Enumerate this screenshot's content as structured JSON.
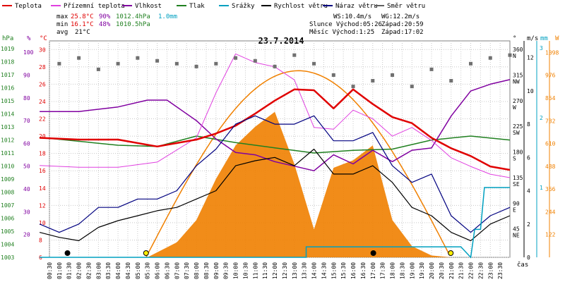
{
  "legend": [
    {
      "id": "teplota",
      "label": "Teplota",
      "color": "#e00000"
    },
    {
      "id": "prizemni",
      "label": "Přízemní teplota",
      "color": "#e040e0"
    },
    {
      "id": "vlhkost",
      "label": "Vlhkost",
      "color": "#8000a0"
    },
    {
      "id": "tlak",
      "label": "Tlak",
      "color": "#208020"
    },
    {
      "id": "srazky",
      "label": "Srážky",
      "color": "#00a0c0"
    },
    {
      "id": "rychlost",
      "label": "Rychlost větru",
      "color": "#000000"
    },
    {
      "id": "naraz",
      "label": "Náraz větru",
      "color": "#000080"
    },
    {
      "id": "smer",
      "label": "Směr větru",
      "color": "#606060"
    }
  ],
  "stats": {
    "max_label": "max",
    "min_label": "min",
    "avg_label": "avg",
    "max_temp": "25.8°C",
    "max_hum": "90%",
    "max_press": "1012.4hPa",
    "max_rain": "1.0mm",
    "min_temp": "16.1°C",
    "min_hum": "48%",
    "min_press": "1010.5hPa",
    "avg_temp": "21°C"
  },
  "info": {
    "ws": "WS:10.4m/s",
    "wg": "WG:12.2m/s",
    "slunce": "Slunce Východ:05:26",
    "slunce_zapad": "Západ:20:59",
    "mesic": "Měsíc  Východ:1:25",
    "mesic_zapad": "Západ:17:02"
  },
  "colors": {
    "grid": "#c8c8c8",
    "sun": "#f08000",
    "axis_temp": "#e00000",
    "axis_press": "#208020",
    "axis_hum": "#8000a0",
    "axis_wind": "#000000",
    "axis_rain": "#00a0c0",
    "axis_solar": "#f08000"
  },
  "chart_data": {
    "type": "line",
    "title": "23.7.2014",
    "x_unit": "čas",
    "time_labels": [
      "00:30",
      "01:00",
      "01:30",
      "02:00",
      "02:30",
      "03:00",
      "03:30",
      "04:00",
      "04:30",
      "05:00",
      "05:30",
      "06:00",
      "06:30",
      "07:00",
      "07:30",
      "08:00",
      "08:30",
      "09:00",
      "09:30",
      "10:00",
      "10:30",
      "11:00",
      "11:30",
      "12:00",
      "12:30",
      "13:00",
      "13:30",
      "14:00",
      "14:30",
      "15:00",
      "15:30",
      "16:00",
      "16:30",
      "17:00",
      "17:30",
      "18:00",
      "18:30",
      "19:00",
      "19:30",
      "20:00",
      "20:30",
      "21:00",
      "21:30",
      "22:00",
      "22:30",
      "23:00",
      "23:30"
    ],
    "axes": {
      "pressure": {
        "unit": "hPa",
        "ticks": [
          "1019",
          "1018",
          "1017",
          "1016",
          "1015",
          "1014",
          "1013",
          "1012",
          "1011",
          "1010",
          "1009",
          "1008",
          "1007",
          "1006",
          "1005",
          "1004",
          "1003"
        ]
      },
      "humidity": {
        "unit": "%",
        "ticks": [
          "100",
          "90",
          "80",
          "70",
          "60",
          "50",
          "40",
          "30",
          "20"
        ]
      },
      "temperature": {
        "unit": "°C",
        "ticks": [
          "30",
          "28",
          "26",
          "24",
          "22",
          "20",
          "18",
          "16",
          "14",
          "12",
          "10",
          "8",
          "6"
        ]
      },
      "direction": {
        "unit": "°",
        "ticks": [
          "360",
          "315",
          "270",
          "225",
          "180",
          "135",
          "90",
          "45"
        ],
        "compass": [
          "N",
          "NW",
          "W",
          "SW",
          "S",
          "SE",
          "E",
          "NE"
        ]
      },
      "wind": {
        "unit": "m/s",
        "ticks": [
          "12",
          "10",
          "8",
          "6",
          "4",
          "2",
          "0"
        ]
      },
      "rain": {
        "unit": "mm",
        "ticks": [
          "3",
          "2",
          "1"
        ]
      },
      "solar": {
        "unit": "W",
        "ticks": [
          "1098",
          "976",
          "854",
          "732",
          "610",
          "488",
          "366",
          "244",
          "122"
        ]
      }
    },
    "series": [
      {
        "name": "Teplota",
        "unit": "°C",
        "x": [
          0,
          2,
          4,
          6,
          8,
          9,
          10,
          11,
          12,
          13,
          14,
          15,
          16,
          17,
          18,
          19,
          20,
          21,
          22,
          23,
          24
        ],
        "y": [
          19.8,
          19.6,
          19.6,
          18.8,
          19.6,
          20.3,
          21.2,
          22.6,
          24.1,
          25.4,
          25.3,
          23.2,
          25.4,
          23.7,
          22.2,
          21.5,
          19.8,
          18.6,
          17.7,
          16.5,
          16.1
        ]
      },
      {
        "name": "Přízemní teplota",
        "unit": "°C",
        "x": [
          0,
          2,
          4,
          6,
          8,
          9,
          10,
          11,
          12,
          13,
          14,
          15,
          16,
          17,
          18,
          19,
          20,
          21,
          22,
          23,
          24
        ],
        "y": [
          16.6,
          16.4,
          16.4,
          17.0,
          19.8,
          25.0,
          29.5,
          28.5,
          28.0,
          26.5,
          21.0,
          20.8,
          23.0,
          22.0,
          20.0,
          21.0,
          19.5,
          17.5,
          16.5,
          15.6,
          15.2
        ]
      },
      {
        "name": "Vlhkost",
        "unit": "%",
        "x": [
          0,
          2,
          4,
          5.5,
          6.5,
          8,
          9,
          10,
          11,
          12,
          13,
          14,
          15,
          16,
          17,
          18,
          19,
          20,
          21,
          22,
          23,
          24
        ],
        "y": [
          74,
          74,
          76,
          79,
          79,
          70,
          62,
          56,
          55,
          52,
          50,
          48,
          55,
          51,
          57,
          52,
          57,
          58,
          72,
          83,
          86,
          88
        ]
      },
      {
        "name": "Tlak",
        "unit": "hPa",
        "x": [
          0,
          2,
          4,
          6,
          8,
          10,
          12,
          14,
          16,
          18,
          20,
          22,
          24
        ],
        "y": [
          1012.2,
          1011.9,
          1011.6,
          1011.5,
          1012.3,
          1011.8,
          1011.4,
          1011.0,
          1011.2,
          1011.3,
          1012.0,
          1012.3,
          1012.0
        ]
      },
      {
        "name": "Rychlost větru",
        "unit": "m/s",
        "x": [
          0,
          1,
          2,
          3,
          4,
          5,
          6,
          7,
          8,
          9,
          10,
          11,
          12,
          13,
          14,
          15,
          16,
          17,
          18,
          19,
          20,
          21,
          22,
          23,
          24
        ],
        "y": [
          1.5,
          1.2,
          1.0,
          1.8,
          2.2,
          2.5,
          2.8,
          3.0,
          3.5,
          4.0,
          5.5,
          5.8,
          6.0,
          5.5,
          6.5,
          5.0,
          5.0,
          5.5,
          4.5,
          3.0,
          2.5,
          1.5,
          1.0,
          2.0,
          2.5
        ]
      },
      {
        "name": "Náraz větru",
        "unit": "m/s",
        "x": [
          0,
          1,
          2,
          3,
          4,
          5,
          6,
          7,
          8,
          9,
          10,
          11,
          12,
          13,
          14,
          15,
          16,
          17,
          18,
          19,
          20,
          21,
          22,
          23,
          24
        ],
        "y": [
          2.0,
          1.5,
          2.0,
          3.0,
          3.0,
          3.5,
          3.5,
          4.0,
          5.5,
          6.5,
          8.0,
          8.5,
          8.0,
          8.0,
          8.5,
          7.0,
          7.0,
          7.5,
          5.5,
          4.5,
          5.0,
          2.5,
          1.5,
          2.5,
          3.0
        ]
      },
      {
        "name": "Sluneční záření",
        "unit": "W",
        "x": [
          5.5,
          7,
          8,
          9,
          10,
          11,
          12,
          13,
          14,
          15,
          16,
          17,
          18,
          19,
          20,
          21
        ],
        "y": [
          0,
          80,
          200,
          420,
          600,
          700,
          780,
          500,
          150,
          480,
          520,
          600,
          200,
          60,
          10,
          0
        ]
      },
      {
        "name": "Srážky",
        "unit": "mm",
        "x": [
          0,
          13.6,
          13.6,
          21.5,
          22.0,
          22.2,
          22.5,
          22.7,
          24
        ],
        "y": [
          0,
          0,
          0.15,
          0.15,
          0,
          0.4,
          0.4,
          1.0,
          1.0
        ]
      },
      {
        "name": "Směr větru",
        "unit": "°",
        "x": [
          1,
          2,
          3,
          4,
          5,
          6,
          7,
          8,
          9,
          10,
          11,
          12,
          13,
          14,
          15,
          16,
          17,
          18,
          19,
          20,
          21,
          22,
          23,
          24
        ],
        "y": [
          340,
          350,
          330,
          340,
          350,
          345,
          340,
          335,
          340,
          350,
          345,
          335,
          355,
          340,
          320,
          300,
          310,
          320,
          300,
          330,
          310,
          340,
          350,
          355
        ]
      }
    ],
    "sunrise": "05:26",
    "sunset": "20:59",
    "moonrise": "1:25",
    "moonset": "17:02"
  }
}
